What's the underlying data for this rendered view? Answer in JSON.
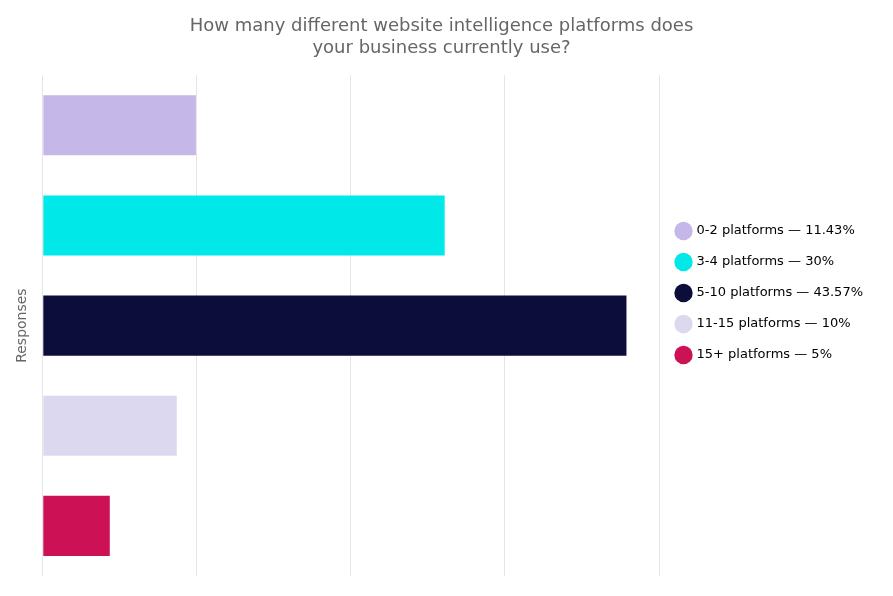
{
  "chart_data": {
    "type": "bar",
    "orientation": "horizontal",
    "title": "How many different website intelligence platforms does\nyour business currently use?",
    "y_label": "Responses",
    "categories": [
      "0-2 platforms — 11.43%",
      "3-4 platforms — 30%",
      "5-10 platforms — 43.57%",
      "11-15 platforms — 10%",
      "15+ platforms — 5%"
    ],
    "values": [
      11.43,
      30.0,
      43.57,
      10.0,
      5.0
    ],
    "colors": [
      "#c5b8e8",
      "#00e8e8",
      "#0d0d3b",
      "#dcd8f0",
      "#cc1155"
    ],
    "xlim": [
      0,
      46
    ],
    "xticks": [
      0,
      11.5,
      23.0,
      34.5,
      46.0
    ],
    "grid": true,
    "tick_labels": false,
    "legend": "right"
  }
}
